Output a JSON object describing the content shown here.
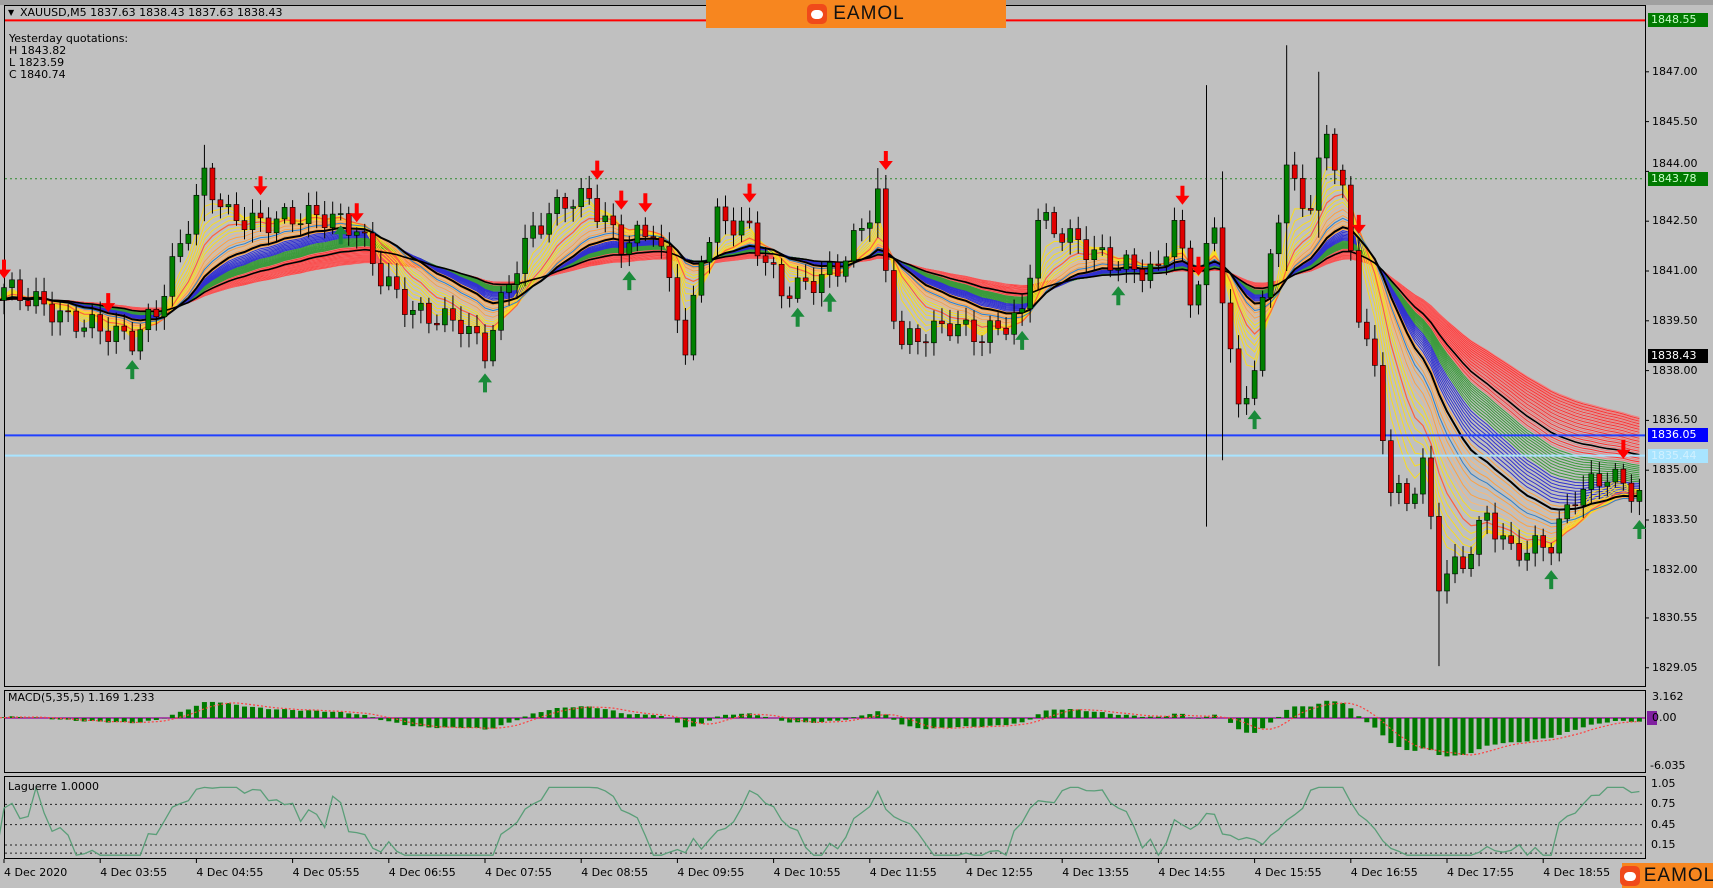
{
  "header": {
    "title": "XAUUSD,M5  1837.63 1838.43 1837.63 1838.43"
  },
  "yesterday": {
    "label": "Yesterday quotations:",
    "h": "H 1843.82",
    "l": "L 1823.59",
    "c": "C 1840.74"
  },
  "logo": {
    "text": "EAMOL"
  },
  "price_axis": [
    {
      "v": 1847.0,
      "t": "1847.00"
    },
    {
      "v": 1845.5,
      "t": "1845.50"
    },
    {
      "v": 1844.0,
      "t": "1844.00"
    },
    {
      "v": 1842.5,
      "t": "1842.50"
    },
    {
      "v": 1841.0,
      "t": "1841.00"
    },
    {
      "v": 1839.5,
      "t": "1839.50"
    },
    {
      "v": 1838.0,
      "t": "1838.00"
    },
    {
      "v": 1836.5,
      "t": "1836.50"
    },
    {
      "v": 1835.0,
      "t": "1835.00"
    },
    {
      "v": 1833.5,
      "t": "1833.50"
    },
    {
      "v": 1832.0,
      "t": "1832.00"
    },
    {
      "v": 1830.55,
      "t": "1830.55"
    },
    {
      "v": 1829.05,
      "t": "1829.05"
    }
  ],
  "hlines": [
    {
      "v": 1848.55,
      "t": "1848.55",
      "color": "#ff0000",
      "bg": "#007a00",
      "fg": "#c8ffc8",
      "style": "solid"
    },
    {
      "v": 1843.78,
      "t": "1843.78",
      "color": "#2e8b2e",
      "bg": "#007a00",
      "fg": "#c8ffc8",
      "style": "dotted"
    },
    {
      "v": 1838.43,
      "t": "1838.43",
      "color": "none",
      "bg": "#000000",
      "fg": "#ffffff",
      "style": "none"
    },
    {
      "v": 1836.05,
      "t": "1836.05",
      "color": "#2040ff",
      "bg": "#0000ff",
      "fg": "#ffffff",
      "style": "solid"
    },
    {
      "v": 1835.44,
      "t": "1835.44",
      "color": "#a8e4ff",
      "bg": "#a8e4ff",
      "fg": "#d0f0ff",
      "style": "solid"
    }
  ],
  "time_axis": [
    "4 Dec 2020",
    "4 Dec 03:55",
    "4 Dec 04:55",
    "4 Dec 05:55",
    "4 Dec 06:55",
    "4 Dec 07:55",
    "4 Dec 08:55",
    "4 Dec 09:55",
    "4 Dec 10:55",
    "4 Dec 11:55",
    "4 Dec 12:55",
    "4 Dec 13:55",
    "4 Dec 14:55",
    "4 Dec 15:55",
    "4 Dec 16:55",
    "4 Dec 17:55",
    "4 Dec 18:55"
  ],
  "macd": {
    "label": "MACD(5,35,5) 1.169 1.233",
    "axis": [
      "3.162",
      "0.00",
      "-6.035"
    ],
    "hist_color": "#007a00",
    "signal_color": "#ff4040"
  },
  "laguerre": {
    "label": "Laguerre 1.0000",
    "axis": [
      "1.05",
      "0.75",
      "0.45",
      "0.15"
    ],
    "line_color": "#5a9e78"
  },
  "colors": {
    "up": "#008000",
    "down": "#e00000",
    "bg": "#c0c0c0"
  },
  "chart_data": {
    "type": "candlestick",
    "symbol": "XAUUSD",
    "timeframe": "M5",
    "ylim": [
      1828.6,
      1849.0
    ],
    "price_path": [
      [
        "02:50",
        1840.5
      ],
      [
        "02:55",
        1840.5
      ],
      [
        "03:35",
        1839.3
      ],
      [
        "04:15",
        1839.0
      ],
      [
        "04:30",
        1840.0
      ],
      [
        "05:00",
        1844.0
      ],
      [
        "05:15",
        1842.7
      ],
      [
        "05:35",
        1842.3
      ],
      [
        "06:15",
        1842.5
      ],
      [
        "06:35",
        1842.3
      ],
      [
        "06:50",
        1841.0
      ],
      [
        "07:10",
        1840.0
      ],
      [
        "07:40",
        1839.5
      ],
      [
        "07:55",
        1838.5
      ],
      [
        "08:10",
        1840.5
      ],
      [
        "08:25",
        1842.0
      ],
      [
        "08:45",
        1843.0
      ],
      [
        "09:00",
        1843.2
      ],
      [
        "09:20",
        1842.0
      ],
      [
        "09:40",
        1842.5
      ],
      [
        "09:55",
        1840.0
      ],
      [
        "10:00",
        1838.5
      ],
      [
        "10:10",
        1841.5
      ],
      [
        "10:20",
        1842.5
      ],
      [
        "10:40",
        1842.0
      ],
      [
        "11:00",
        1840.2
      ],
      [
        "11:15",
        1840.5
      ],
      [
        "11:35",
        1841.2
      ],
      [
        "11:50",
        1842.5
      ],
      [
        "12:00",
        1843.5
      ],
      [
        "12:05",
        1841.0
      ],
      [
        "12:15",
        1839.0
      ],
      [
        "12:45",
        1839.3
      ],
      [
        "13:05",
        1838.8
      ],
      [
        "13:30",
        1839.5
      ],
      [
        "13:40",
        1842.5
      ],
      [
        "14:05",
        1842.0
      ],
      [
        "14:25",
        1841.5
      ],
      [
        "14:55",
        1841.0
      ],
      [
        "15:05",
        1842.5
      ],
      [
        "15:15",
        1840.0
      ],
      [
        "15:30",
        1842.0
      ],
      [
        "15:45",
        1836.5
      ],
      [
        "15:55",
        1838.0
      ],
      [
        "16:05",
        1841.5
      ],
      [
        "16:15",
        1844.0
      ],
      [
        "16:30",
        1843.0
      ],
      [
        "16:40",
        1845.5
      ],
      [
        "16:50",
        1843.5
      ],
      [
        "17:00",
        1840.0
      ],
      [
        "17:10",
        1838.0
      ],
      [
        "17:20",
        1834.5
      ],
      [
        "17:30",
        1834.0
      ],
      [
        "17:40",
        1835.0
      ],
      [
        "17:50",
        1831.5
      ],
      [
        "18:05",
        1832.0
      ],
      [
        "18:20",
        1833.5
      ],
      [
        "18:35",
        1832.5
      ],
      [
        "19:00",
        1833.0
      ],
      [
        "19:15",
        1834.5
      ],
      [
        "19:35",
        1835.0
      ],
      [
        "19:55",
        1834.2
      ]
    ],
    "wicks": [
      [
        "15:25",
        1846.6,
        1833.3
      ],
      [
        "15:35",
        1844.0,
        1835.3
      ],
      [
        "16:15",
        1847.8,
        1841.0
      ],
      [
        "16:35",
        1847.0,
        1842.0
      ],
      [
        "17:50",
        1833.0,
        1829.1
      ],
      [
        "12:00",
        1844.1,
        1842.0
      ],
      [
        "05:00",
        1844.8,
        1842.5
      ]
    ],
    "signals": [
      {
        "t": "02:55",
        "dir": "down"
      },
      {
        "t": "04:00",
        "dir": "down"
      },
      {
        "t": "05:35",
        "dir": "down"
      },
      {
        "t": "06:35",
        "dir": "down"
      },
      {
        "t": "09:05",
        "dir": "down"
      },
      {
        "t": "09:20",
        "dir": "down"
      },
      {
        "t": "09:35",
        "dir": "down"
      },
      {
        "t": "10:40",
        "dir": "down"
      },
      {
        "t": "12:05",
        "dir": "down"
      },
      {
        "t": "15:10",
        "dir": "down"
      },
      {
        "t": "15:20",
        "dir": "down"
      },
      {
        "t": "17:00",
        "dir": "down"
      },
      {
        "t": "19:45",
        "dir": "down"
      },
      {
        "t": "04:15",
        "dir": "up"
      },
      {
        "t": "06:25",
        "dir": "up"
      },
      {
        "t": "07:55",
        "dir": "up"
      },
      {
        "t": "09:25",
        "dir": "up"
      },
      {
        "t": "11:10",
        "dir": "up"
      },
      {
        "t": "11:30",
        "dir": "up"
      },
      {
        "t": "13:30",
        "dir": "up"
      },
      {
        "t": "14:30",
        "dir": "up"
      },
      {
        "t": "15:55",
        "dir": "up"
      },
      {
        "t": "19:00",
        "dir": "up"
      },
      {
        "t": "19:55",
        "dir": "up"
      }
    ]
  }
}
